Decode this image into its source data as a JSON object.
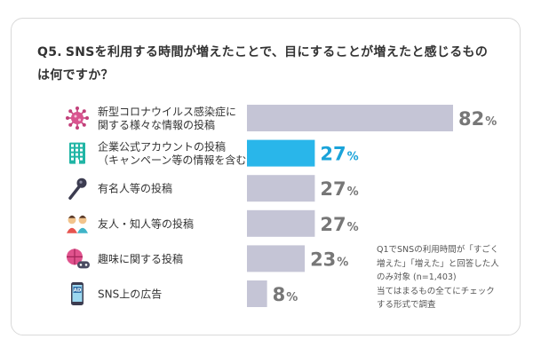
{
  "title": {
    "number": "Q5.",
    "line1": "SNSを利用する時間が増えたことで、目にすることが増えたと感じるもの",
    "line2": "は何ですか？"
  },
  "chart_data": {
    "type": "bar",
    "orientation": "horizontal",
    "title": "Q5. SNSを利用する時間が増えたことで、目にすることが増えたと感じるものは何ですか？",
    "unit": "%",
    "xlim": [
      0,
      100
    ],
    "categories": [
      "新型コロナウイルス感染症に関する様々な情報の投稿",
      "企業公式アカウントの投稿（キャンペーン等の情報を含む）",
      "有名人等の投稿",
      "友人・知人等の投稿",
      "趣味に関する投稿",
      "SNS上の広告"
    ],
    "category_lines": [
      [
        "新型コロナウイルス感染症に",
        "関する様々な情報の投稿"
      ],
      [
        "企業公式アカウントの投稿",
        "（キャンペーン等の情報を含む）"
      ],
      [
        "有名人等の投稿"
      ],
      [
        "友人・知人等の投稿"
      ],
      [
        "趣味に関する投稿"
      ],
      [
        "SNS上の広告"
      ]
    ],
    "values": [
      82,
      27,
      27,
      27,
      23,
      8
    ],
    "value_labels": [
      "82",
      "27",
      "27",
      "27",
      "23",
      "8"
    ],
    "icons": [
      "virus-icon",
      "building-icon",
      "microphone-icon",
      "friends-icon",
      "hobby-icon",
      "ad-phone-icon"
    ],
    "highlight_index": 1,
    "colors": {
      "bar": "#c5c5d6",
      "highlight": "#29b6ea",
      "value_text": "#777777",
      "highlight_text": "#1aa3d9"
    }
  },
  "note": {
    "lines": [
      "Q1でSNSの利用時間が「すごく",
      "増えた」「増えた」と回答した人",
      "のみ対象 (n=1,403)",
      "当てはまるもの全てにチェック",
      "する形式で調査"
    ]
  }
}
